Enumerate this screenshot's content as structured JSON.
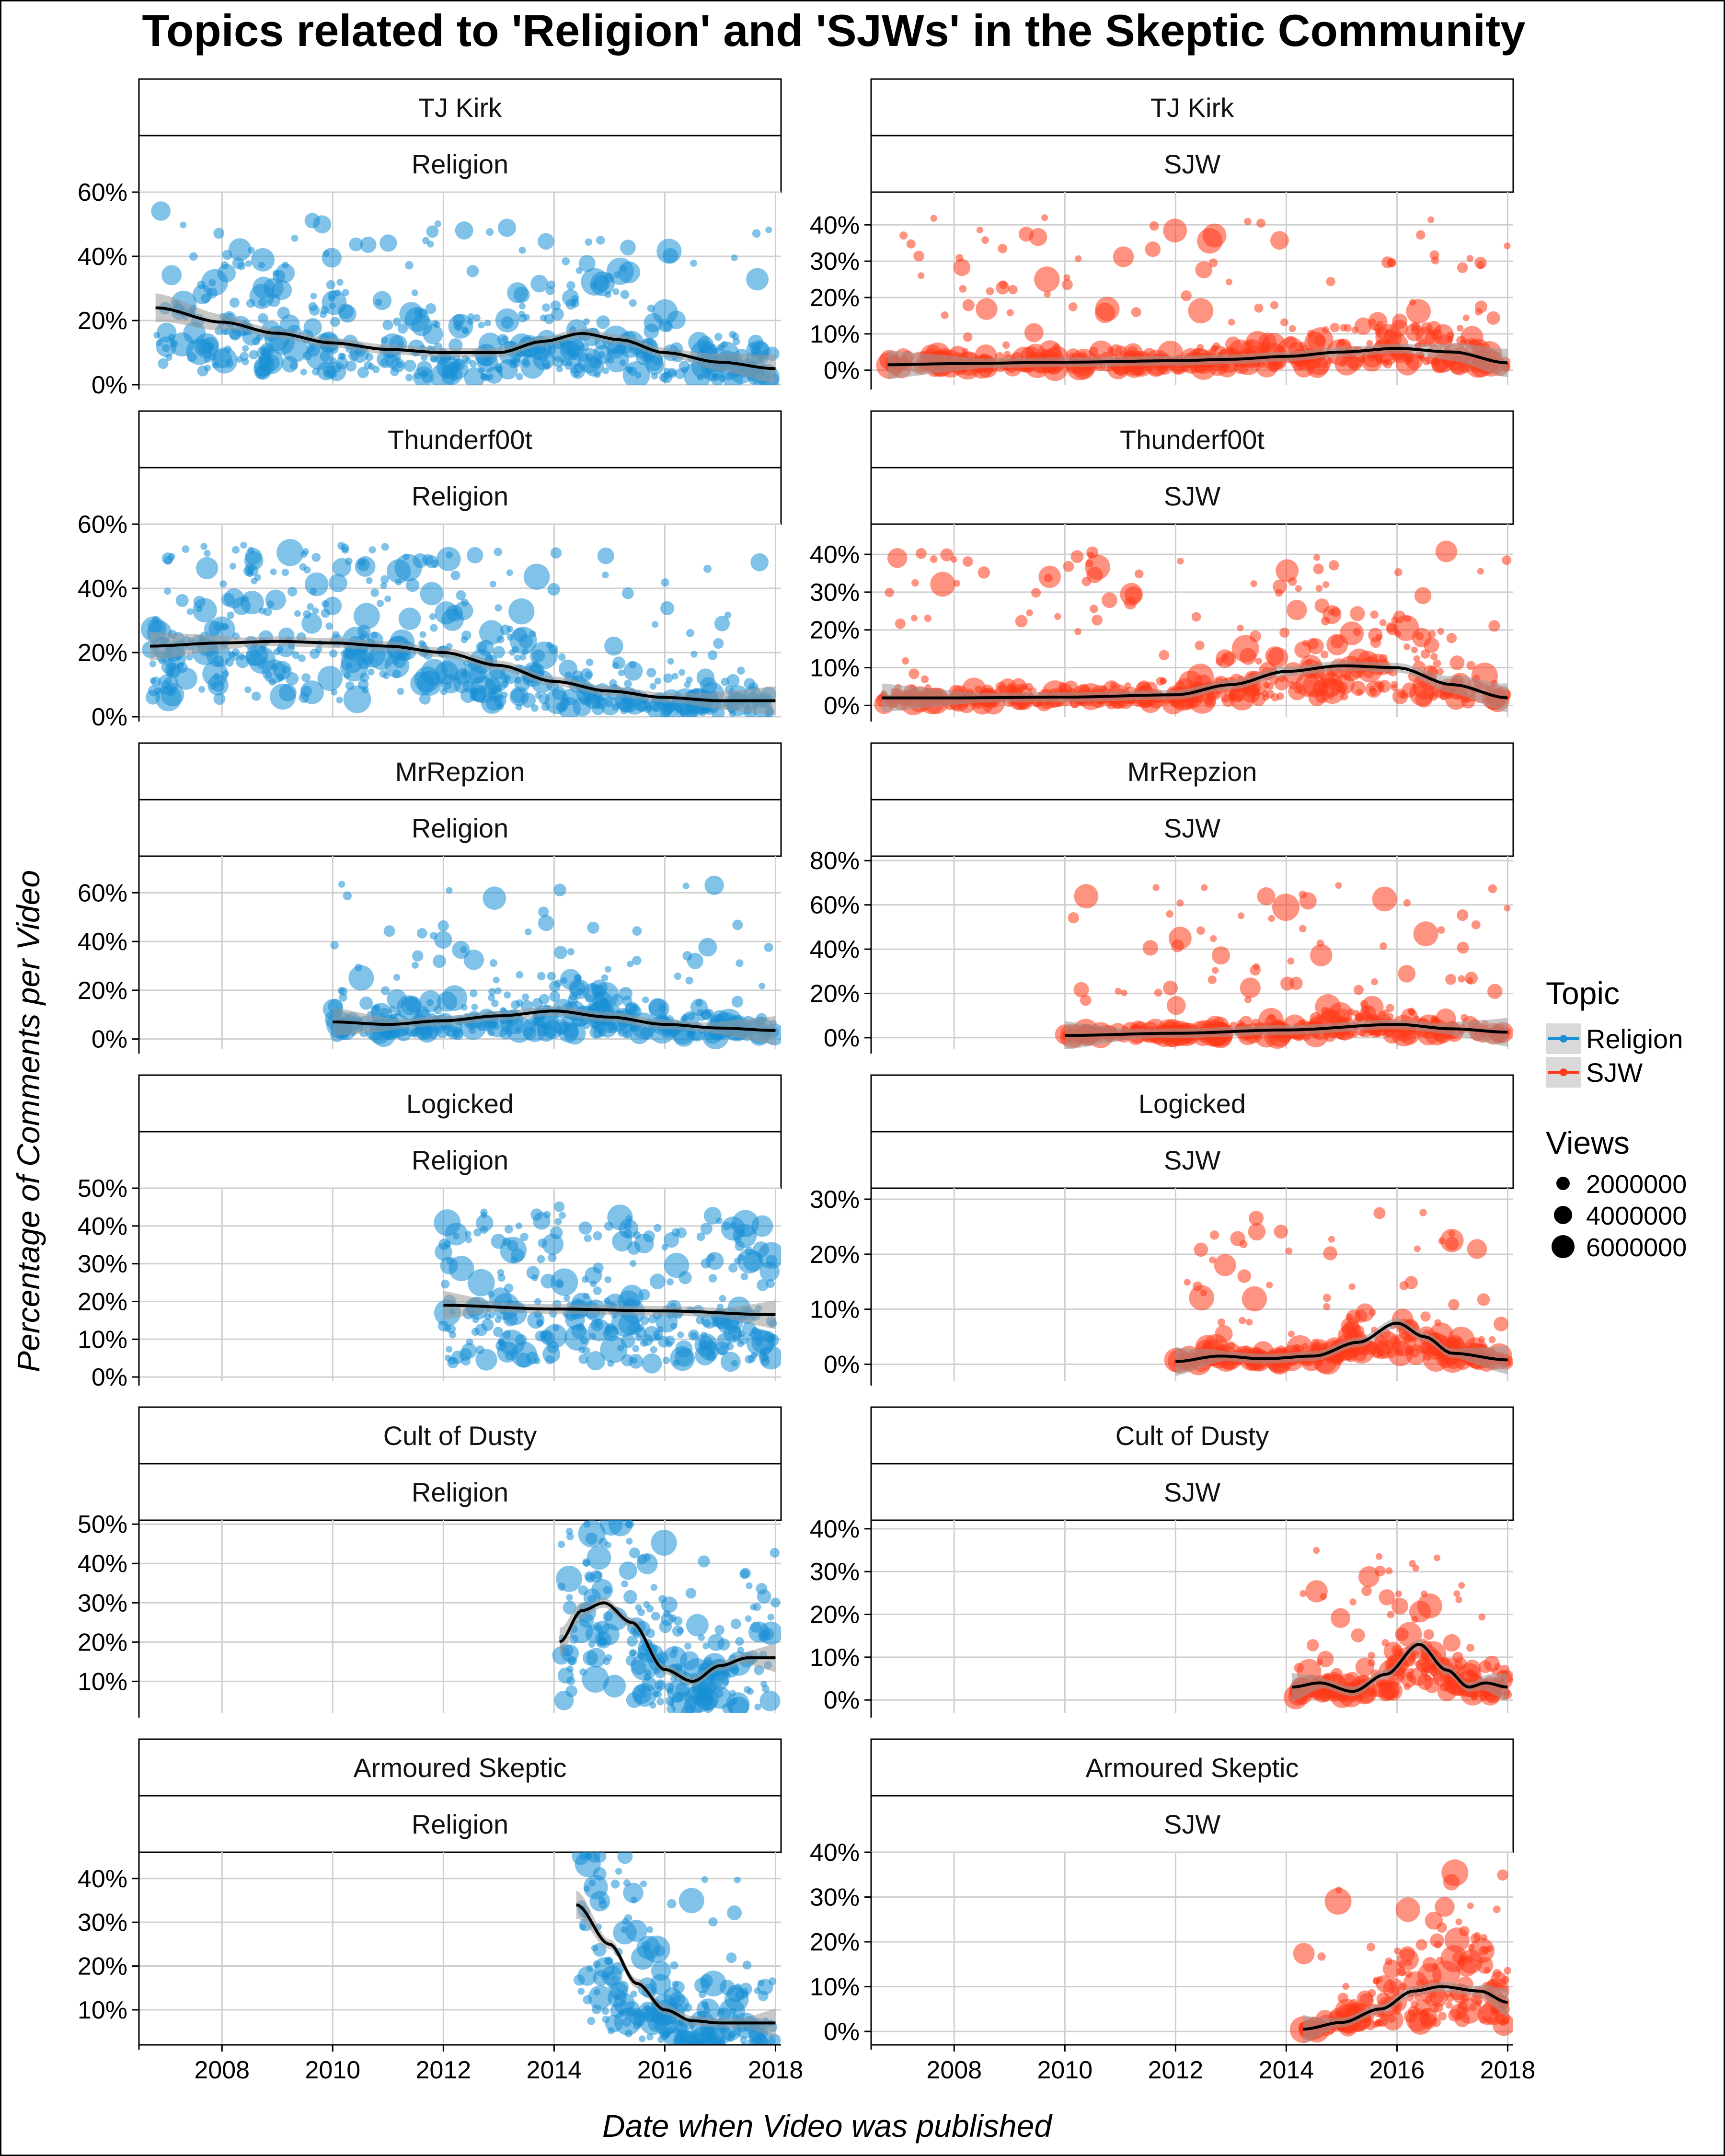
{
  "title": "Topics related to 'Religion' and 'SJWs' in the Skeptic Community",
  "xlabel": "Date when Video was published",
  "ylabel": "Percentage of Comments per Video",
  "legend": {
    "topic_title": "Topic",
    "topics": [
      {
        "label": "Religion",
        "color": "#1a8fd6"
      },
      {
        "label": "SJW",
        "color": "#ff3a1a"
      }
    ],
    "views_title": "Views",
    "views": [
      "2000000",
      "4000000",
      "6000000"
    ]
  },
  "x_ticks": [
    "2008",
    "2010",
    "2012",
    "2014",
    "2016",
    "2018"
  ],
  "chart_data": [
    {
      "type": "scatter",
      "channel": "TJ Kirk",
      "topic": "Religion",
      "xlim": [
        2006.5,
        2018.1
      ],
      "ylim": [
        0,
        60
      ],
      "yticks": [
        0,
        20,
        40,
        60
      ],
      "ytick_labels": [
        "0%",
        "20%",
        "40%",
        "60%"
      ],
      "data_range": [
        2006.8,
        2018.0
      ],
      "smooth": [
        [
          2006.8,
          24
        ],
        [
          2008,
          19.5
        ],
        [
          2009,
          16
        ],
        [
          2010,
          13
        ],
        [
          2011,
          11
        ],
        [
          2012,
          10
        ],
        [
          2013,
          10
        ],
        [
          2013.8,
          13.5
        ],
        [
          2014.5,
          16
        ],
        [
          2015.2,
          14
        ],
        [
          2016,
          10
        ],
        [
          2017,
          7
        ],
        [
          2018,
          5
        ]
      ]
    },
    {
      "type": "scatter",
      "channel": "TJ Kirk",
      "topic": "SJW",
      "xlim": [
        2006.5,
        2018.1
      ],
      "ylim": [
        -4,
        49
      ],
      "yticks": [
        0,
        10,
        20,
        30,
        40
      ],
      "ytick_labels": [
        "0%",
        "10%",
        "20%",
        "30%",
        "40%"
      ],
      "data_range": [
        2006.8,
        2018.0
      ],
      "smooth": [
        [
          2006.8,
          1.5
        ],
        [
          2008,
          1.8
        ],
        [
          2010,
          2.2
        ],
        [
          2012,
          2.6
        ],
        [
          2013,
          3.0
        ],
        [
          2014,
          3.8
        ],
        [
          2015,
          5.0
        ],
        [
          2016,
          6.0
        ],
        [
          2017,
          5.0
        ],
        [
          2018,
          2.0
        ]
      ]
    },
    {
      "type": "scatter",
      "channel": "Thunderf00t",
      "topic": "Religion",
      "xlim": [
        2006.5,
        2018.1
      ],
      "ylim": [
        0,
        60
      ],
      "yticks": [
        0,
        20,
        40,
        60
      ],
      "ytick_labels": [
        "0%",
        "20%",
        "40%",
        "60%"
      ],
      "data_range": [
        2006.7,
        2018.0
      ],
      "smooth": [
        [
          2006.7,
          22
        ],
        [
          2008,
          23
        ],
        [
          2009,
          23.5
        ],
        [
          2010,
          23
        ],
        [
          2011,
          22
        ],
        [
          2012,
          20
        ],
        [
          2013,
          16
        ],
        [
          2014,
          11
        ],
        [
          2015,
          8
        ],
        [
          2016,
          6
        ],
        [
          2017,
          5
        ],
        [
          2018,
          5
        ]
      ]
    },
    {
      "type": "scatter",
      "channel": "Thunderf00t",
      "topic": "SJW",
      "xlim": [
        2006.5,
        2018.1
      ],
      "ylim": [
        -3,
        48
      ],
      "yticks": [
        0,
        10,
        20,
        30,
        40
      ],
      "ytick_labels": [
        "0%",
        "10%",
        "20%",
        "30%",
        "40%"
      ],
      "data_range": [
        2006.7,
        2018.0
      ],
      "smooth": [
        [
          2006.7,
          2.0
        ],
        [
          2008,
          2.0
        ],
        [
          2010,
          2.2
        ],
        [
          2012,
          2.8
        ],
        [
          2013,
          5.5
        ],
        [
          2014,
          9.0
        ],
        [
          2015,
          10.5
        ],
        [
          2016,
          10.0
        ],
        [
          2017,
          5.5
        ],
        [
          2018,
          2.0
        ]
      ]
    },
    {
      "type": "scatter",
      "channel": "MrRepzion",
      "topic": "Religion",
      "xlim": [
        2006.5,
        2018.1
      ],
      "ylim": [
        -4,
        75
      ],
      "yticks": [
        0,
        20,
        40,
        60
      ],
      "ytick_labels": [
        "0%",
        "20%",
        "40%",
        "60%"
      ],
      "data_range": [
        2010.0,
        2018.0
      ],
      "smooth": [
        [
          2010,
          7
        ],
        [
          2011,
          6
        ],
        [
          2012,
          7.5
        ],
        [
          2013,
          9.5
        ],
        [
          2014,
          11.5
        ],
        [
          2015,
          9
        ],
        [
          2016,
          6
        ],
        [
          2017,
          4.5
        ],
        [
          2018,
          3.5
        ]
      ]
    },
    {
      "type": "scatter",
      "channel": "MrRepzion",
      "topic": "SJW",
      "xlim": [
        2006.5,
        2018.1
      ],
      "ylim": [
        -5,
        82
      ],
      "yticks": [
        0,
        20,
        40,
        60,
        80
      ],
      "ytick_labels": [
        "0%",
        "20%",
        "40%",
        "60%",
        "80%"
      ],
      "data_range": [
        2010.0,
        2018.0
      ],
      "smooth": [
        [
          2010,
          1
        ],
        [
          2012,
          2
        ],
        [
          2014,
          3.5
        ],
        [
          2016,
          6
        ],
        [
          2017,
          4
        ],
        [
          2018,
          2.5
        ]
      ]
    },
    {
      "type": "scatter",
      "channel": "Logicked",
      "topic": "Religion",
      "xlim": [
        2006.5,
        2018.1
      ],
      "ylim": [
        -1,
        50
      ],
      "yticks": [
        0,
        10,
        20,
        30,
        40,
        50
      ],
      "ytick_labels": [
        "0%",
        "10%",
        "20%",
        "30%",
        "40%",
        "50%"
      ],
      "data_range": [
        2012.0,
        2018.0
      ],
      "smooth": [
        [
          2012,
          19
        ],
        [
          2014,
          18
        ],
        [
          2016,
          17.5
        ],
        [
          2018,
          16.5
        ]
      ]
    },
    {
      "type": "scatter",
      "channel": "Logicked",
      "topic": "SJW",
      "xlim": [
        2006.5,
        2018.1
      ],
      "ylim": [
        -3,
        32
      ],
      "yticks": [
        0,
        10,
        20,
        30
      ],
      "ytick_labels": [
        "0%",
        "10%",
        "20%",
        "30%"
      ],
      "data_range": [
        2012.0,
        2018.0
      ],
      "smooth": [
        [
          2012,
          0.5
        ],
        [
          2012.8,
          1.5
        ],
        [
          2013.6,
          1.0
        ],
        [
          2014.5,
          1.5
        ],
        [
          2015.3,
          4.0
        ],
        [
          2016,
          7.5
        ],
        [
          2016.5,
          5.0
        ],
        [
          2017,
          2.0
        ],
        [
          2018,
          0.8
        ]
      ]
    },
    {
      "type": "scatter",
      "channel": "Cult of Dusty",
      "topic": "Religion",
      "xlim": [
        2006.5,
        2018.1
      ],
      "ylim": [
        2,
        51
      ],
      "yticks": [
        10,
        20,
        30,
        40,
        50
      ],
      "ytick_labels": [
        "10%",
        "20%",
        "30%",
        "40%",
        "50%"
      ],
      "data_range": [
        2014.1,
        2018.0
      ],
      "smooth": [
        [
          2014.1,
          20
        ],
        [
          2014.5,
          28
        ],
        [
          2014.9,
          30
        ],
        [
          2015.4,
          25
        ],
        [
          2016,
          13
        ],
        [
          2016.5,
          10
        ],
        [
          2017,
          14
        ],
        [
          2017.5,
          16
        ],
        [
          2018,
          16
        ]
      ]
    },
    {
      "type": "scatter",
      "channel": "Cult of Dusty",
      "topic": "SJW",
      "xlim": [
        2006.5,
        2018.1
      ],
      "ylim": [
        -3,
        42
      ],
      "yticks": [
        0,
        10,
        20,
        30,
        40
      ],
      "ytick_labels": [
        "0%",
        "10%",
        "20%",
        "30%",
        "40%"
      ],
      "data_range": [
        2014.1,
        2018.0
      ],
      "smooth": [
        [
          2014.1,
          3
        ],
        [
          2014.6,
          4
        ],
        [
          2015.2,
          2
        ],
        [
          2015.8,
          6
        ],
        [
          2016.4,
          13
        ],
        [
          2016.9,
          7
        ],
        [
          2017.3,
          3
        ],
        [
          2017.6,
          4
        ],
        [
          2018,
          3
        ]
      ]
    },
    {
      "type": "scatter",
      "channel": "Armoured Skeptic",
      "topic": "Religion",
      "xlim": [
        2006.5,
        2018.1
      ],
      "ylim": [
        2,
        46
      ],
      "yticks": [
        10,
        20,
        30,
        40
      ],
      "ytick_labels": [
        "10%",
        "20%",
        "30%",
        "40%"
      ],
      "data_range": [
        2014.4,
        2018.0
      ],
      "smooth": [
        [
          2014.4,
          34
        ],
        [
          2015,
          25
        ],
        [
          2015.5,
          16
        ],
        [
          2016,
          10
        ],
        [
          2016.5,
          7.5
        ],
        [
          2017,
          7
        ],
        [
          2018,
          7
        ]
      ]
    },
    {
      "type": "scatter",
      "channel": "Armoured Skeptic",
      "topic": "SJW",
      "xlim": [
        2006.5,
        2018.1
      ],
      "ylim": [
        -3,
        40
      ],
      "yticks": [
        0,
        10,
        20,
        30,
        40
      ],
      "ytick_labels": [
        "0%",
        "10%",
        "20%",
        "30%",
        "40%"
      ],
      "data_range": [
        2014.3,
        2018.0
      ],
      "smooth": [
        [
          2014.3,
          0.5
        ],
        [
          2015,
          2
        ],
        [
          2015.7,
          5
        ],
        [
          2016.3,
          9
        ],
        [
          2016.8,
          10
        ],
        [
          2017.5,
          9
        ],
        [
          2018,
          6.5
        ]
      ]
    }
  ]
}
